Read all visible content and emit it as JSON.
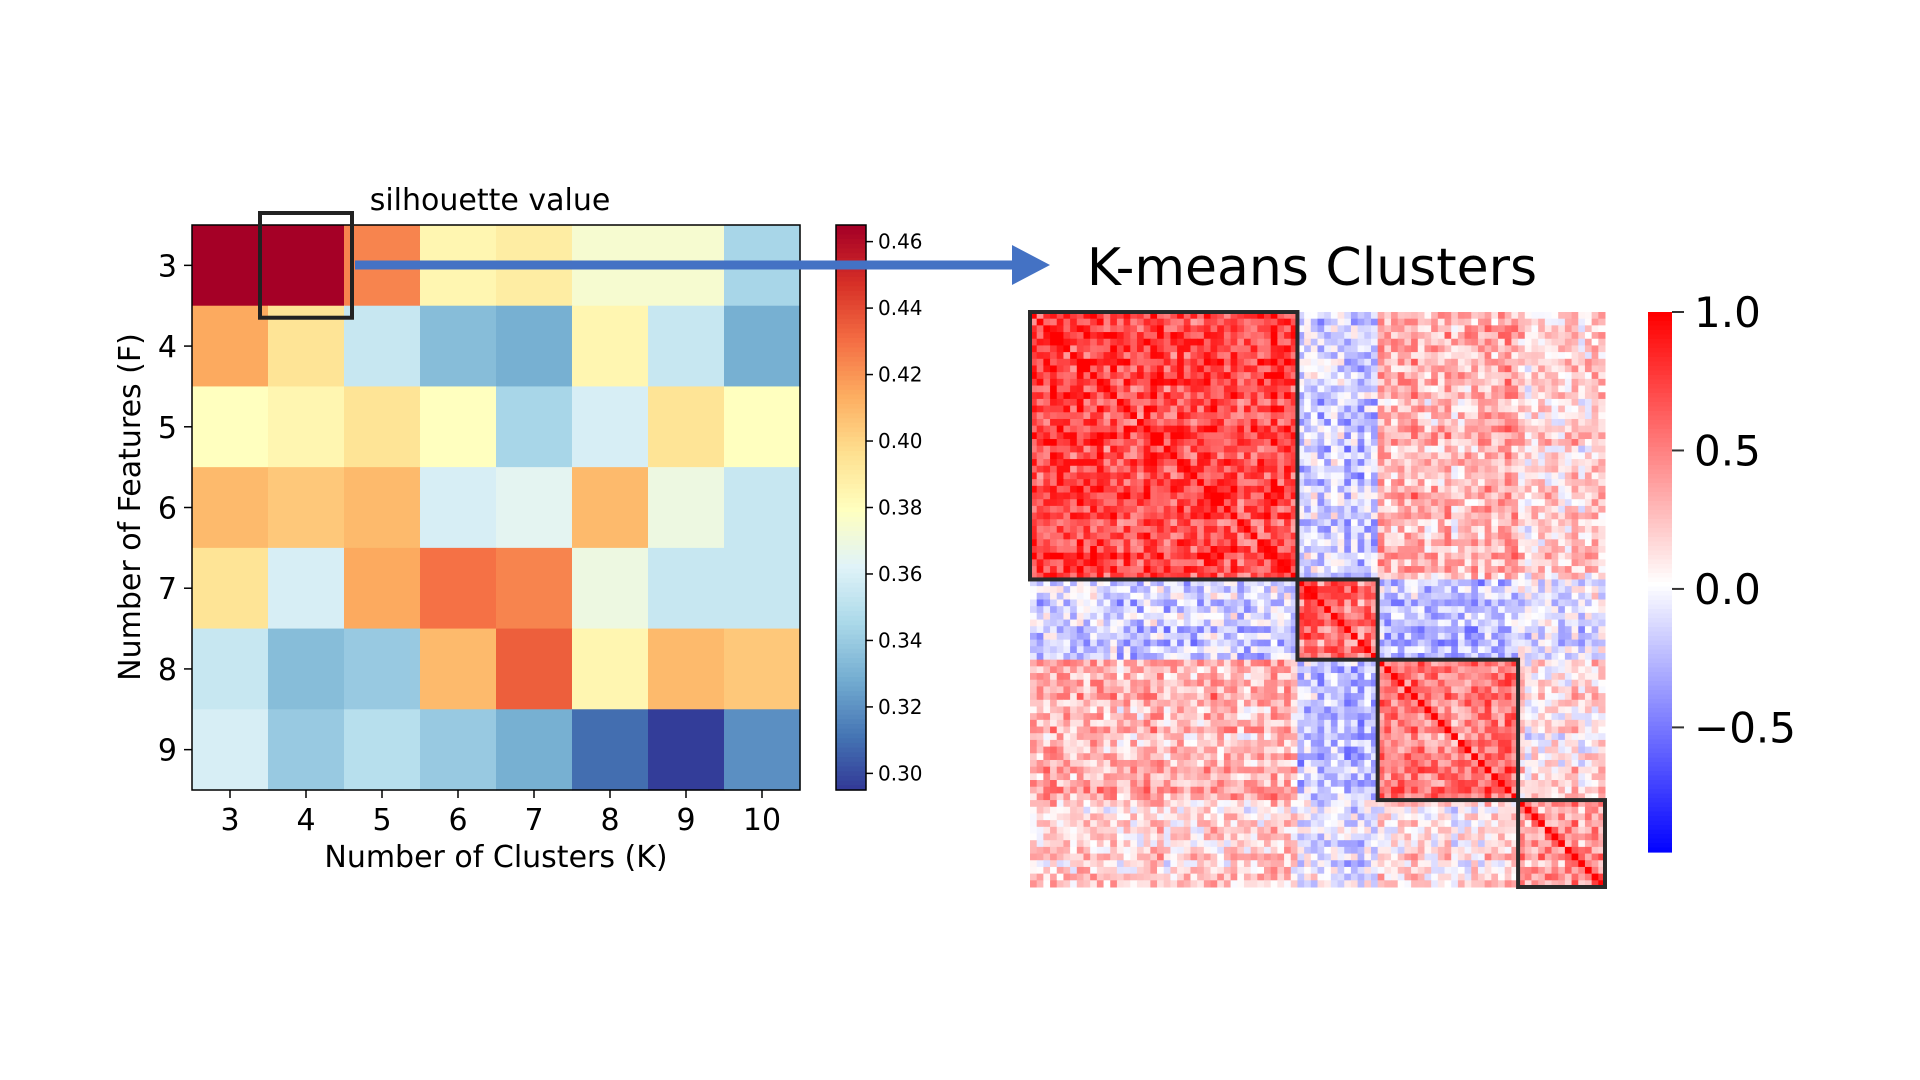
{
  "chart_data": [
    {
      "type": "heatmap",
      "annotation": "silhouette value",
      "xlabel": "Number of Clusters (K)",
      "ylabel": "Number of Features (F)",
      "x": [
        3,
        4,
        5,
        6,
        7,
        8,
        9,
        10
      ],
      "y": [
        3,
        4,
        5,
        6,
        7,
        8,
        9
      ],
      "values": [
        [
          0.465,
          0.465,
          0.425,
          0.385,
          0.39,
          0.375,
          0.375,
          0.345
        ],
        [
          0.415,
          0.395,
          0.355,
          0.335,
          0.33,
          0.385,
          0.355,
          0.33
        ],
        [
          0.38,
          0.385,
          0.395,
          0.38,
          0.345,
          0.36,
          0.395,
          0.38
        ],
        [
          0.41,
          0.405,
          0.41,
          0.36,
          0.365,
          0.41,
          0.37,
          0.355
        ],
        [
          0.395,
          0.36,
          0.415,
          0.43,
          0.425,
          0.37,
          0.355,
          0.355
        ],
        [
          0.355,
          0.335,
          0.34,
          0.41,
          0.435,
          0.385,
          0.41,
          0.405
        ],
        [
          0.36,
          0.34,
          0.35,
          0.34,
          0.33,
          0.31,
          0.297,
          0.32
        ]
      ],
      "highlight": {
        "x": 4,
        "y": 3
      },
      "colorbar": {
        "min": 0.295,
        "max": 0.465,
        "ticks": [
          "0.46",
          "0.44",
          "0.42",
          "0.40",
          "0.38",
          "0.36",
          "0.34",
          "0.32",
          "0.30"
        ],
        "colormap": "RdYlBu_r"
      }
    },
    {
      "type": "heatmap",
      "title": "K-means Clusters",
      "colormap": "bwr",
      "colorbar": {
        "min": -0.95,
        "max": 1.0,
        "ticks": [
          "1.0",
          "0.5",
          "0.0",
          "−0.5"
        ]
      },
      "cluster_blocks": [
        {
          "from": 0,
          "to": 40
        },
        {
          "from": 40,
          "to": 52
        },
        {
          "from": 52,
          "to": 73
        },
        {
          "from": 73,
          "to": 86
        }
      ],
      "size": 86
    }
  ],
  "arrow": {
    "color": "#4472c4"
  }
}
